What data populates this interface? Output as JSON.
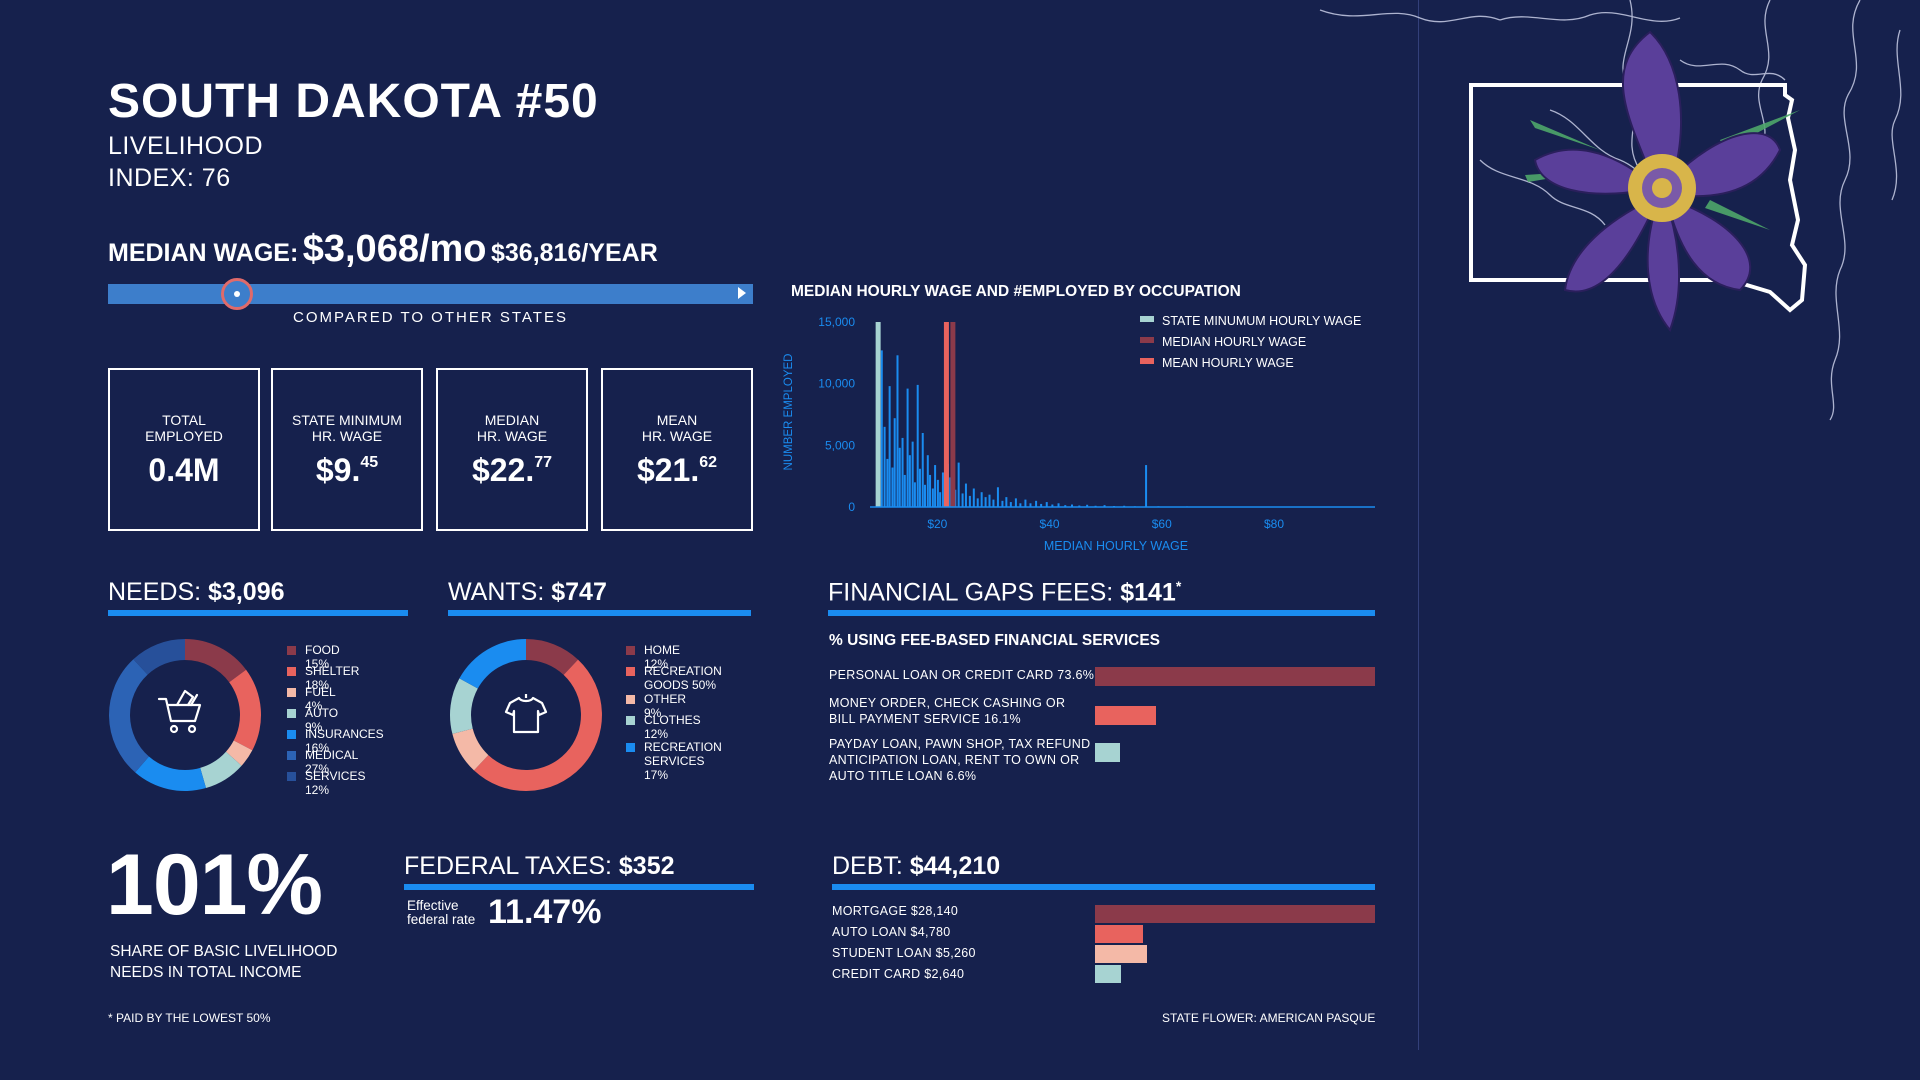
{
  "header": {
    "title": "SOUTH DAKOTA #50",
    "subtitle_line1": "LIVELIHOOD",
    "subtitle_line2": "INDEX: 76"
  },
  "median_wage": {
    "label": "MEDIAN WAGE:",
    "monthly": "$3,068/mo",
    "yearly": "$36,816/YEAR",
    "comparison_caption": "COMPARED TO OTHER STATES",
    "position_fraction": 0.2
  },
  "stats": [
    {
      "label": "TOTAL\nEMPLOYED",
      "value": "0.4M",
      "sup": ""
    },
    {
      "label": "STATE MINIMUM\nHR. WAGE",
      "value": "$9.",
      "sup": "45"
    },
    {
      "label": "MEDIAN\nHR. WAGE",
      "value": "$22.",
      "sup": "77"
    },
    {
      "label": "MEAN\nHR. WAGE",
      "value": "$21.",
      "sup": "62"
    }
  ],
  "needs": {
    "label": "NEEDS:",
    "value": "$3,096",
    "icon": "shopping-cart-icon"
  },
  "wants": {
    "label": "WANTS:",
    "value": "$747",
    "icon": "t-shirt-icon"
  },
  "financial_gaps": {
    "label": "FINANCIAL GAPS FEES:",
    "value": "$141",
    "footnote_mark": "*",
    "subtitle": "% USING FEE-BASED FINANCIAL SERVICES"
  },
  "share": {
    "value": "101%",
    "caption_line1": "SHARE OF BASIC LIVELIHOOD",
    "caption_line2": "NEEDS IN TOTAL INCOME"
  },
  "federal_taxes": {
    "label": "FEDERAL TAXES:",
    "value": "$352",
    "rate_label_line1": "Effective",
    "rate_label_line2": "federal rate",
    "rate_value": "11.47%"
  },
  "debt": {
    "label": "DEBT:",
    "value": "$44,210"
  },
  "footnotes": {
    "left": "* PAID BY THE LOWEST 50%",
    "right": "STATE FLOWER: AMERICAN PASQUE"
  },
  "chart_data": [
    {
      "type": "bar",
      "title": "MEDIAN HOURLY WAGE AND #EMPLOYED BY OCCUPATION",
      "xlabel": "MEDIAN HOURLY WAGE",
      "ylabel": "NUMBER EMPLOYED",
      "x_ticks": [
        "$20",
        "$40",
        "$60",
        "$80"
      ],
      "y_ticks": [
        "15,000",
        "10,000",
        "5,000",
        "0"
      ],
      "xlim": [
        8,
        98
      ],
      "ylim": [
        0,
        15000
      ],
      "legend": [
        {
          "name": "STATE MINUMUM HOURLY WAGE",
          "color": "#a7d3d2"
        },
        {
          "name": "MEDIAN HOURLY WAGE",
          "color": "#8b3a4a"
        },
        {
          "name": "MEAN HOURLY WAGE",
          "color": "#e8635e"
        }
      ],
      "reference_lines": [
        {
          "name": "STATE MINUMUM HOURLY WAGE",
          "x": 9.45,
          "y": 15000,
          "color": "#a7d3d2"
        },
        {
          "name": "MEDIAN HOURLY WAGE",
          "x": 22.77,
          "y": 15000,
          "color": "#8b3a4a"
        },
        {
          "name": "MEAN HOURLY WAGE",
          "x": 21.62,
          "y": 15000,
          "color": "#e8635e"
        }
      ],
      "bars": [
        {
          "x": 9.6,
          "y": 4500
        },
        {
          "x": 10.1,
          "y": 12700
        },
        {
          "x": 10.6,
          "y": 6500
        },
        {
          "x": 11.1,
          "y": 3900
        },
        {
          "x": 11.5,
          "y": 9800
        },
        {
          "x": 12.0,
          "y": 3200
        },
        {
          "x": 12.4,
          "y": 7200
        },
        {
          "x": 12.9,
          "y": 12300
        },
        {
          "x": 13.3,
          "y": 4800
        },
        {
          "x": 13.8,
          "y": 5600
        },
        {
          "x": 14.2,
          "y": 2600
        },
        {
          "x": 14.7,
          "y": 9600
        },
        {
          "x": 15.1,
          "y": 4200
        },
        {
          "x": 15.6,
          "y": 5300
        },
        {
          "x": 16.0,
          "y": 2000
        },
        {
          "x": 16.5,
          "y": 9900
        },
        {
          "x": 16.9,
          "y": 3100
        },
        {
          "x": 17.4,
          "y": 6000
        },
        {
          "x": 17.8,
          "y": 1800
        },
        {
          "x": 18.3,
          "y": 4200
        },
        {
          "x": 18.7,
          "y": 2600
        },
        {
          "x": 19.2,
          "y": 1500
        },
        {
          "x": 19.6,
          "y": 3400
        },
        {
          "x": 20.1,
          "y": 2200
        },
        {
          "x": 20.5,
          "y": 1200
        },
        {
          "x": 21.0,
          "y": 2800
        },
        {
          "x": 21.4,
          "y": 1700
        },
        {
          "x": 21.9,
          "y": 3500
        },
        {
          "x": 22.3,
          "y": 2400
        },
        {
          "x": 23.2,
          "y": 1400
        },
        {
          "x": 23.8,
          "y": 3600
        },
        {
          "x": 24.5,
          "y": 1100
        },
        {
          "x": 25.1,
          "y": 1900
        },
        {
          "x": 25.8,
          "y": 900
        },
        {
          "x": 26.5,
          "y": 1500
        },
        {
          "x": 27.2,
          "y": 700
        },
        {
          "x": 27.9,
          "y": 1200
        },
        {
          "x": 28.6,
          "y": 800
        },
        {
          "x": 29.3,
          "y": 1000
        },
        {
          "x": 30.0,
          "y": 600
        },
        {
          "x": 30.8,
          "y": 1600
        },
        {
          "x": 31.6,
          "y": 500
        },
        {
          "x": 32.3,
          "y": 800
        },
        {
          "x": 33.1,
          "y": 400
        },
        {
          "x": 34.0,
          "y": 700
        },
        {
          "x": 34.8,
          "y": 300
        },
        {
          "x": 35.7,
          "y": 600
        },
        {
          "x": 36.6,
          "y": 300
        },
        {
          "x": 37.6,
          "y": 500
        },
        {
          "x": 38.5,
          "y": 250
        },
        {
          "x": 39.5,
          "y": 400
        },
        {
          "x": 40.5,
          "y": 200
        },
        {
          "x": 41.6,
          "y": 300
        },
        {
          "x": 42.8,
          "y": 150
        },
        {
          "x": 44.0,
          "y": 200
        },
        {
          "x": 45.3,
          "y": 120
        },
        {
          "x": 46.7,
          "y": 180
        },
        {
          "x": 48.2,
          "y": 100
        },
        {
          "x": 49.8,
          "y": 150
        },
        {
          "x": 51.5,
          "y": 80
        },
        {
          "x": 53.3,
          "y": 100
        },
        {
          "x": 55.2,
          "y": 60
        },
        {
          "x": 57.2,
          "y": 3400
        },
        {
          "x": 59.4,
          "y": 60
        },
        {
          "x": 61.8,
          "y": 40
        },
        {
          "x": 64.5,
          "y": 50
        },
        {
          "x": 67.5,
          "y": 40
        },
        {
          "x": 71.0,
          "y": 30
        },
        {
          "x": 75.0,
          "y": 30
        },
        {
          "x": 80.0,
          "y": 25
        },
        {
          "x": 86.0,
          "y": 25
        },
        {
          "x": 92.0,
          "y": 30
        }
      ]
    },
    {
      "type": "pie",
      "title": "NEEDS",
      "labels": [
        "FOOD",
        "SHELTER",
        "FUEL",
        "AUTO",
        "INSURANCES",
        "MEDICAL",
        "SERVICES"
      ],
      "values": [
        15,
        18,
        4,
        9,
        16,
        27,
        12
      ],
      "legend_text": [
        "FOOD 15%",
        "SHELTER 18%",
        "FUEL 4%",
        "AUTO 9%",
        "INSURANCES 16%",
        "MEDICAL 27%",
        "SERVICES 12%"
      ],
      "colors": [
        "#8b3a4a",
        "#e8635e",
        "#f4b9a7",
        "#a7d3d2",
        "#1a8cf0",
        "#2c63b5",
        "#27509a"
      ]
    },
    {
      "type": "pie",
      "title": "WANTS",
      "labels": [
        "HOME",
        "RECREATION GOODS",
        "OTHER",
        "CLOTHES",
        "RECREATION SERVICES"
      ],
      "values": [
        12,
        50,
        9,
        12,
        17
      ],
      "legend_text": [
        "HOME 12%",
        "RECREATION\nGOODS 50%",
        "OTHER 9%",
        "CLOTHES 12%",
        "RECREATION\nSERVICES 17%"
      ],
      "colors": [
        "#8b3a4a",
        "#e8635e",
        "#f4b9a7",
        "#a7d3d2",
        "#1a8cf0"
      ]
    },
    {
      "type": "bar",
      "title": "% USING FEE-BASED FINANCIAL SERVICES",
      "categories": [
        "PERSONAL LOAN OR CREDIT CARD 73.6%",
        "MONEY ORDER, CHECK CASHING OR\nBILL PAYMENT SERVICE 16.1%",
        "PAYDAY LOAN, PAWN SHOP, TAX REFUND\nANTICIPATION LOAN, RENT TO OWN OR\nAUTO TITLE LOAN 6.6%"
      ],
      "values": [
        73.6,
        16.1,
        6.6
      ],
      "colors": [
        "#8b3a4a",
        "#e8635e",
        "#a7d3d2"
      ],
      "xlim": [
        0,
        73.6
      ]
    },
    {
      "type": "bar",
      "title": "DEBT",
      "categories": [
        "MORTGAGE $28,140",
        "AUTO LOAN $4,780",
        "STUDENT LOAN $5,260",
        "CREDIT CARD $2,640"
      ],
      "values": [
        28140,
        4780,
        5260,
        2640
      ],
      "colors": [
        "#8b3a4a",
        "#e8635e",
        "#f4b9a7",
        "#a7d3d2"
      ],
      "xlim": [
        0,
        28140
      ]
    }
  ]
}
